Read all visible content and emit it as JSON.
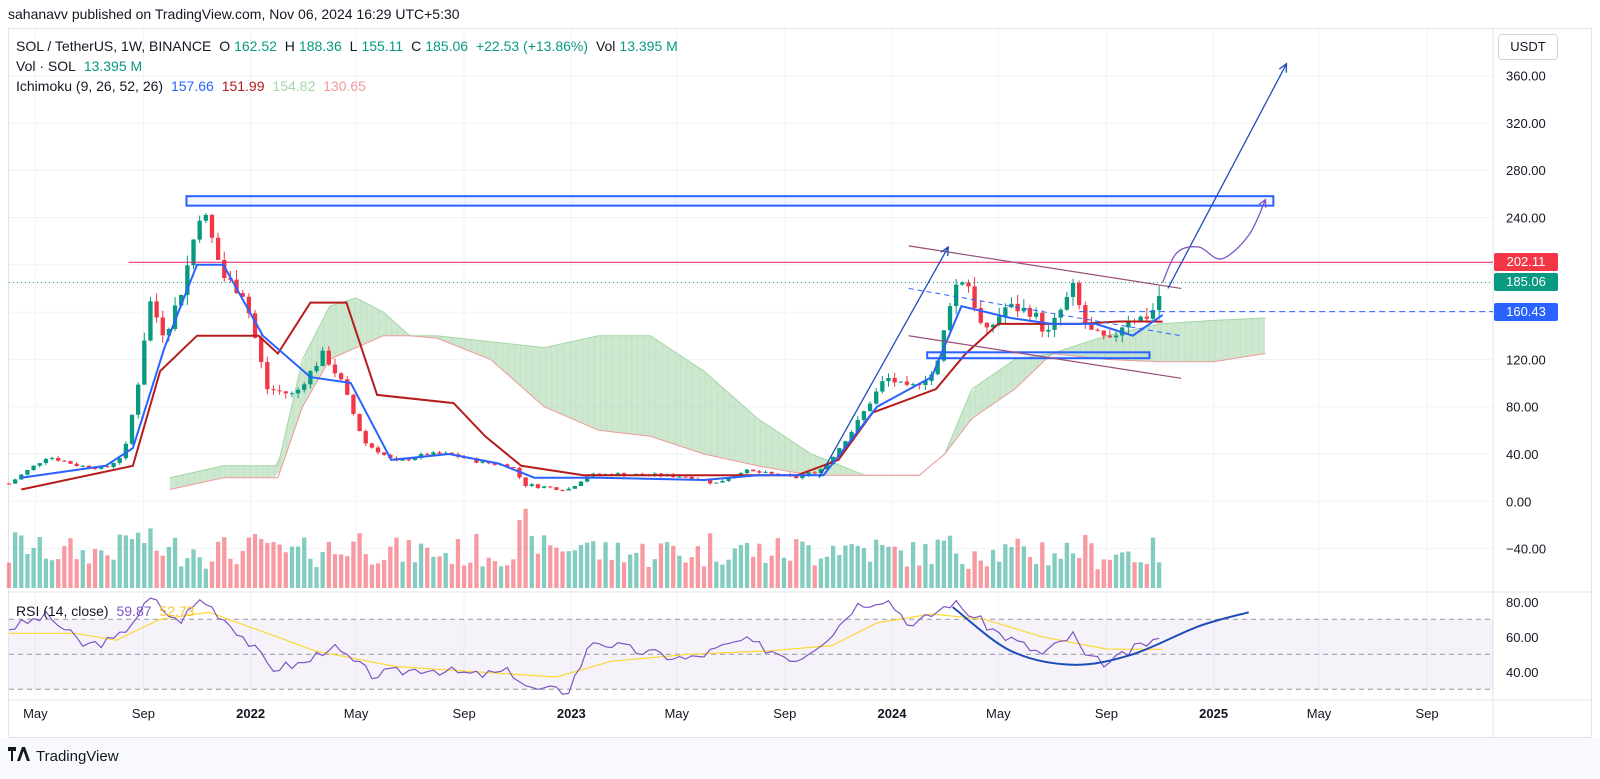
{
  "header": {
    "published_by": "sahanavv published on TradingView.com, Nov 06, 2024 16:29 UTC+5:30"
  },
  "legend": {
    "symbol": "SOL / TetherUS, 1W, BINANCE",
    "ohlc": [
      {
        "label": "O",
        "value": "162.52"
      },
      {
        "label": "H",
        "value": "188.36"
      },
      {
        "label": "L",
        "value": "155.11"
      },
      {
        "label": "C",
        "value": "185.06"
      }
    ],
    "change": "+22.53 (+13.86%)",
    "vol_label": "Vol",
    "vol_value": "13.395 M",
    "vol_line_label": "Vol · SOL",
    "vol_line_value": "13.395 M",
    "ichimoku_label": "Ichimoku (9, 26, 52, 26)",
    "ichimoku_values": [
      "157.66",
      "151.99",
      "154.82",
      "130.65"
    ],
    "rsi_label": "RSI (14, close)",
    "rsi_values": [
      "59.87",
      "52.73"
    ]
  },
  "currency_button": "USDT",
  "colors": {
    "up": "#089981",
    "down": "#f23645",
    "tenkan": "#2962ff",
    "kijun": "#b71c1c",
    "cloud_bull": "#a5d6a7",
    "cloud_bear": "#ef9a9a",
    "resistance_line": "#e91e63",
    "channel": "#9c4f79",
    "annotation_blue": "#1e4db7",
    "rsi_line": "#7e57c2",
    "rsi_ma": "#fdd835"
  },
  "price_tags": [
    {
      "name": "resistance",
      "value": 202.11,
      "label": "202.11",
      "color": "#f23645"
    },
    {
      "name": "last",
      "value": 185.06,
      "label": "185.06",
      "color": "#089981"
    },
    {
      "name": "support",
      "value": 160.43,
      "label": "160.43",
      "color": "#2962ff"
    }
  ],
  "footer": {
    "brand": "TradingView"
  },
  "chart_data": {
    "type": "candlestick",
    "timeframe": "1W",
    "x_range": [
      "2021-04-01",
      "2025-11-15"
    ],
    "x_tick_labels": [
      {
        "date": "2021-05-01",
        "label": "May"
      },
      {
        "date": "2021-09-01",
        "label": "Sep"
      },
      {
        "date": "2022-01-01",
        "label": "2022"
      },
      {
        "date": "2022-05-01",
        "label": "May"
      },
      {
        "date": "2022-09-01",
        "label": "Sep"
      },
      {
        "date": "2023-01-01",
        "label": "2023"
      },
      {
        "date": "2023-05-01",
        "label": "May"
      },
      {
        "date": "2023-09-01",
        "label": "Sep"
      },
      {
        "date": "2024-01-01",
        "label": "2024"
      },
      {
        "date": "2024-05-01",
        "label": "May"
      },
      {
        "date": "2024-09-01",
        "label": "Sep"
      },
      {
        "date": "2025-01-01",
        "label": "2025"
      },
      {
        "date": "2025-05-01",
        "label": "May"
      },
      {
        "date": "2025-09-01",
        "label": "Sep"
      }
    ],
    "price_axis": {
      "ylim": [
        -75,
        385
      ],
      "ticks": [
        -40,
        0,
        40,
        80,
        120,
        160,
        200,
        240,
        280,
        320,
        360
      ],
      "tick_labels": [
        "−40.00",
        "0.00",
        "40.00",
        "80.00",
        "120.00",
        "160.00",
        "200.00",
        "240.00",
        "280.00",
        "320.00",
        "360.00"
      ]
    },
    "rsi_axis": {
      "ylim": [
        25,
        85
      ],
      "ticks": [
        40,
        60,
        80
      ],
      "tick_labels": [
        "40.00",
        "60.00",
        "80.00"
      ],
      "bands": [
        30,
        50,
        70
      ]
    },
    "price_keypoints": [
      [
        "2021-04-01",
        15
      ],
      [
        "2021-05-15",
        38
      ],
      [
        "2021-06-20",
        30
      ],
      [
        "2021-07-20",
        28
      ],
      [
        "2021-08-10",
        40
      ],
      [
        "2021-08-25",
        95
      ],
      [
        "2021-09-08",
        170
      ],
      [
        "2021-09-25",
        140
      ],
      [
        "2021-10-15",
        180
      ],
      [
        "2021-11-06",
        250
      ],
      [
        "2021-12-01",
        190
      ],
      [
        "2021-12-25",
        175
      ],
      [
        "2022-01-20",
        95
      ],
      [
        "2022-02-20",
        90
      ],
      [
        "2022-03-25",
        125
      ],
      [
        "2022-04-15",
        100
      ],
      [
        "2022-05-10",
        50
      ],
      [
        "2022-06-15",
        33
      ],
      [
        "2022-07-20",
        40
      ],
      [
        "2022-08-15",
        40
      ],
      [
        "2022-09-20",
        33
      ],
      [
        "2022-10-25",
        30
      ],
      [
        "2022-11-09",
        14
      ],
      [
        "2022-12-28",
        10
      ],
      [
        "2023-01-20",
        22
      ],
      [
        "2023-02-20",
        23
      ],
      [
        "2023-04-10",
        22
      ],
      [
        "2023-05-15",
        21
      ],
      [
        "2023-06-14",
        15
      ],
      [
        "2023-07-15",
        26
      ],
      [
        "2023-08-15",
        23
      ],
      [
        "2023-09-15",
        20
      ],
      [
        "2023-10-15",
        28
      ],
      [
        "2023-11-15",
        58
      ],
      [
        "2023-12-25",
        105
      ],
      [
        "2024-01-20",
        95
      ],
      [
        "2024-02-20",
        110
      ],
      [
        "2024-03-10",
        180
      ],
      [
        "2024-03-25",
        190
      ],
      [
        "2024-04-15",
        140
      ],
      [
        "2024-05-10",
        165
      ],
      [
        "2024-06-10",
        160
      ],
      [
        "2024-06-25",
        140
      ],
      [
        "2024-07-25",
        180
      ],
      [
        "2024-08-10",
        145
      ],
      [
        "2024-09-05",
        135
      ],
      [
        "2024-09-25",
        155
      ],
      [
        "2024-10-15",
        155
      ],
      [
        "2024-10-28",
        165
      ],
      [
        "2024-11-04",
        185
      ]
    ],
    "tenkan_sen": [
      [
        "2021-04-15",
        20
      ],
      [
        "2021-07-20",
        30
      ],
      [
        "2021-08-20",
        45
      ],
      [
        "2021-09-25",
        130
      ],
      [
        "2021-11-01",
        200
      ],
      [
        "2021-12-01",
        200
      ],
      [
        "2022-01-15",
        140
      ],
      [
        "2022-03-10",
        105
      ],
      [
        "2022-04-25",
        100
      ],
      [
        "2022-06-10",
        35
      ],
      [
        "2022-08-15",
        40
      ],
      [
        "2022-10-10",
        32
      ],
      [
        "2022-11-20",
        20
      ],
      [
        "2023-02-01",
        20
      ],
      [
        "2023-06-01",
        18
      ],
      [
        "2023-08-01",
        22
      ],
      [
        "2023-10-15",
        22
      ],
      [
        "2023-12-15",
        80
      ],
      [
        "2024-02-15",
        105
      ],
      [
        "2024-03-20",
        165
      ],
      [
        "2024-05-15",
        155
      ],
      [
        "2024-07-01",
        150
      ],
      [
        "2024-08-20",
        150
      ],
      [
        "2024-10-01",
        140
      ],
      [
        "2024-11-04",
        157.66
      ]
    ],
    "kijun_sen": [
      [
        "2021-04-15",
        10
      ],
      [
        "2021-08-20",
        30
      ],
      [
        "2021-09-20",
        110
      ],
      [
        "2021-11-01",
        140
      ],
      [
        "2022-01-10",
        140
      ],
      [
        "2022-02-01",
        125
      ],
      [
        "2022-03-10",
        168
      ],
      [
        "2022-04-20",
        168
      ],
      [
        "2022-05-25",
        90
      ],
      [
        "2022-08-20",
        83
      ],
      [
        "2022-09-25",
        55
      ],
      [
        "2022-11-05",
        30
      ],
      [
        "2023-01-15",
        22
      ],
      [
        "2023-05-10",
        22
      ],
      [
        "2023-09-15",
        22
      ],
      [
        "2023-11-01",
        35
      ],
      [
        "2023-12-10",
        75
      ],
      [
        "2024-02-20",
        95
      ],
      [
        "2024-03-25",
        125
      ],
      [
        "2024-05-01",
        150
      ],
      [
        "2024-08-01",
        150
      ],
      [
        "2024-09-15",
        152
      ],
      [
        "2024-11-04",
        151.99
      ]
    ],
    "cloud": [
      [
        "2021-10-01",
        20,
        10
      ],
      [
        "2021-12-01",
        30,
        20
      ],
      [
        "2022-02-01",
        30,
        20
      ],
      [
        "2022-03-01",
        120,
        80
      ],
      [
        "2022-04-01",
        165,
        120
      ],
      [
        "2022-05-01",
        172,
        130
      ],
      [
        "2022-06-01",
        160,
        140
      ],
      [
        "2022-07-01",
        140,
        140
      ],
      [
        "2022-08-01",
        140,
        138
      ],
      [
        "2022-10-01",
        135,
        120
      ],
      [
        "2022-12-01",
        130,
        80
      ],
      [
        "2023-02-01",
        140,
        60
      ],
      [
        "2023-04-01",
        140,
        55
      ],
      [
        "2023-06-01",
        110,
        40
      ],
      [
        "2023-08-01",
        70,
        30
      ],
      [
        "2023-10-01",
        40,
        22
      ],
      [
        "2023-12-01",
        22,
        22
      ],
      [
        "2024-02-01",
        22,
        22
      ],
      [
        "2024-03-01",
        40,
        40
      ],
      [
        "2024-04-01",
        95,
        70
      ],
      [
        "2024-05-20",
        120,
        95
      ],
      [
        "2024-07-01",
        125,
        125
      ],
      [
        "2024-09-01",
        140,
        120
      ],
      [
        "2024-11-01",
        150,
        118
      ],
      [
        "2025-01-01",
        153,
        118
      ],
      [
        "2025-03-01",
        155,
        125
      ]
    ],
    "volume_scale_max": 13.395,
    "rsi_keypoints": [
      [
        "2021-04-01",
        65
      ],
      [
        "2021-05-15",
        72
      ],
      [
        "2021-06-25",
        55
      ],
      [
        "2021-08-01",
        58
      ],
      [
        "2021-09-10",
        82
      ],
      [
        "2021-10-10",
        68
      ],
      [
        "2021-11-06",
        82
      ],
      [
        "2021-12-20",
        62
      ],
      [
        "2022-01-25",
        42
      ],
      [
        "2022-03-05",
        45
      ],
      [
        "2022-04-01",
        55
      ],
      [
        "2022-05-20",
        38
      ],
      [
        "2022-07-20",
        42
      ],
      [
        "2022-09-15",
        38
      ],
      [
        "2022-10-25",
        40
      ],
      [
        "2022-11-15",
        30
      ],
      [
        "2022-12-28",
        29
      ],
      [
        "2023-01-25",
        58
      ],
      [
        "2023-03-15",
        52
      ],
      [
        "2023-05-15",
        47
      ],
      [
        "2023-07-15",
        58
      ],
      [
        "2023-09-15",
        47
      ],
      [
        "2023-10-25",
        62
      ],
      [
        "2023-11-20",
        78
      ],
      [
        "2023-12-25",
        82
      ],
      [
        "2024-01-25",
        66
      ],
      [
        "2024-03-10",
        80
      ],
      [
        "2024-05-01",
        62
      ],
      [
        "2024-06-20",
        50
      ],
      [
        "2024-07-25",
        61
      ],
      [
        "2024-08-10",
        47
      ],
      [
        "2024-09-05",
        45
      ],
      [
        "2024-10-10",
        55
      ],
      [
        "2024-11-04",
        59.87
      ]
    ],
    "rsi_ma_keypoints": [
      [
        "2021-04-01",
        62
      ],
      [
        "2021-06-15",
        62
      ],
      [
        "2021-08-01",
        58
      ],
      [
        "2021-09-20",
        70
      ],
      [
        "2021-11-15",
        74
      ],
      [
        "2022-01-20",
        62
      ],
      [
        "2022-03-15",
        52
      ],
      [
        "2022-06-15",
        43
      ],
      [
        "2022-09-15",
        40
      ],
      [
        "2022-12-15",
        37
      ],
      [
        "2023-02-15",
        46
      ],
      [
        "2023-05-15",
        50
      ],
      [
        "2023-08-15",
        52
      ],
      [
        "2023-10-25",
        55
      ],
      [
        "2023-12-15",
        68
      ],
      [
        "2024-02-15",
        73
      ],
      [
        "2024-04-15",
        70
      ],
      [
        "2024-06-20",
        60
      ],
      [
        "2024-09-01",
        53
      ],
      [
        "2024-11-04",
        52.73
      ]
    ],
    "horizontal_lines": [
      {
        "name": "resistance-line",
        "value": 202.11,
        "style": "solid"
      },
      {
        "name": "last-price-line",
        "value": 185.06,
        "style": "dotted"
      },
      {
        "name": "support-line",
        "value": 160.43,
        "style": "dashed",
        "from": "2024-08-01"
      }
    ],
    "zones": [
      {
        "name": "top-zone",
        "from": "2021-10-20",
        "to": "2025-03-10",
        "y1": 250,
        "y2": 258
      },
      {
        "name": "bottom-zone",
        "from": "2024-02-10",
        "to": "2024-10-20",
        "y1": 121,
        "y2": 126
      }
    ],
    "channel": {
      "upper": [
        [
          "2024-01-20",
          216
        ],
        [
          "2024-11-25",
          180
        ]
      ],
      "lower": [
        [
          "2024-01-20",
          140
        ],
        [
          "2024-11-25",
          104
        ]
      ],
      "mid": [
        [
          "2024-01-20",
          180
        ],
        [
          "2024-11-25",
          140
        ]
      ]
    },
    "arrows": [
      {
        "name": "rally-arrow",
        "from": [
          "2023-10-10",
          20
        ],
        "to": [
          "2024-03-05",
          215
        ]
      },
      {
        "name": "target-arrow",
        "from": [
          "2024-11-10",
          180
        ],
        "to": [
          "2025-03-25",
          370
        ]
      }
    ],
    "projection_path": [
      [
        "2024-11-04",
        185
      ],
      [
        "2024-11-20",
        210
      ],
      [
        "2024-12-15",
        215
      ],
      [
        "2025-01-10",
        205
      ],
      [
        "2025-02-10",
        225
      ],
      [
        "2025-03-01",
        255
      ]
    ],
    "rsi_arc": [
      [
        "2024-03-10",
        77
      ],
      [
        "2024-05-15",
        52
      ],
      [
        "2024-07-25",
        44
      ],
      [
        "2024-10-01",
        50
      ],
      [
        "2024-12-15",
        66
      ],
      [
        "2025-02-10",
        74
      ]
    ]
  }
}
